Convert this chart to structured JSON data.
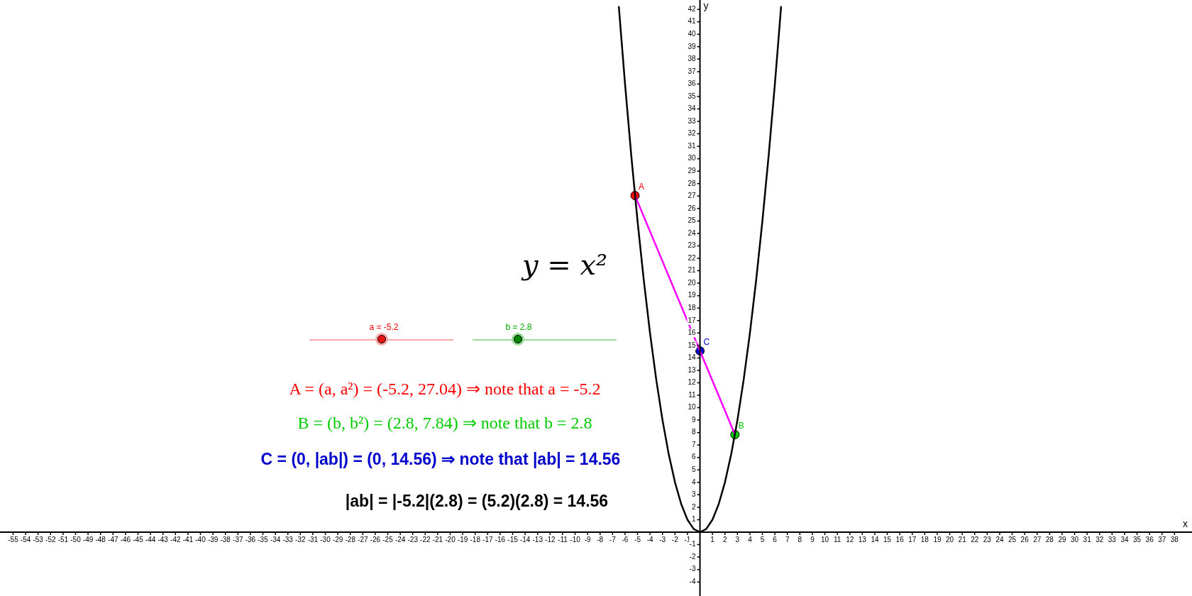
{
  "chart_data": {
    "type": "line",
    "xlabel": "x",
    "ylabel": "y",
    "xlim": [
      -56.05,
      39.4
    ],
    "ylim": [
      -5.13,
      42.75
    ],
    "xticks": [
      -55,
      -54,
      -53,
      -52,
      -51,
      -50,
      -49,
      -48,
      -47,
      -46,
      -45,
      -44,
      -43,
      -42,
      -41,
      -40,
      -39,
      -38,
      -37,
      -36,
      -35,
      -34,
      -33,
      -32,
      -31,
      -30,
      -29,
      -28,
      -27,
      -26,
      -25,
      -24,
      -23,
      -22,
      -21,
      -20,
      -19,
      -18,
      -17,
      -16,
      -15,
      -14,
      -13,
      -12,
      -11,
      -10,
      -9,
      -8,
      -7,
      -6,
      -5,
      -4,
      -3,
      -2,
      -1,
      1,
      2,
      3,
      4,
      5,
      6,
      7,
      8,
      9,
      10,
      11,
      12,
      13,
      14,
      15,
      16,
      17,
      18,
      19,
      20,
      21,
      22,
      23,
      24,
      25,
      26,
      27,
      28,
      29,
      30,
      31,
      32,
      33,
      34,
      35,
      36,
      37,
      38
    ],
    "yticks": [
      -4,
      -3,
      -2,
      -1,
      1,
      2,
      3,
      4,
      5,
      6,
      7,
      8,
      9,
      10,
      11,
      12,
      13,
      14,
      15,
      16,
      17,
      18,
      19,
      20,
      21,
      22,
      23,
      24,
      25,
      26,
      27,
      28,
      29,
      30,
      31,
      32,
      33,
      34,
      35,
      36,
      37,
      38,
      39,
      40,
      41,
      42
    ],
    "legend": false,
    "series": [
      {
        "type": "line",
        "color": "#000000",
        "x": [
          -6.5,
          -6,
          -5.5,
          -5,
          -4.5,
          -4,
          -3.5,
          -3,
          -2.5,
          -2,
          -1.5,
          -1,
          -0.5,
          0,
          0.5,
          1,
          1.5,
          2,
          2.5,
          3,
          3.5,
          4,
          4.5,
          5,
          5.5,
          6,
          6.5
        ],
        "values": [
          42.25,
          36,
          30.25,
          25,
          20.25,
          16,
          12.25,
          9,
          6.25,
          4,
          2.25,
          1,
          0.25,
          0,
          0.25,
          1,
          2.25,
          4,
          6.25,
          9,
          12.25,
          16,
          20.25,
          25,
          30.25,
          36,
          42.25
        ]
      },
      {
        "type": "line",
        "color": "#ff00ff",
        "x": [
          -5.2,
          2.8
        ],
        "values": [
          27.04,
          7.84
        ]
      },
      {
        "type": "scatter",
        "name": "A",
        "color": "#ff0000",
        "marker": "circle",
        "x": [
          -5.2
        ],
        "values": [
          27.04
        ]
      },
      {
        "type": "scatter",
        "name": "B",
        "color": "#00cc00",
        "marker": "circle",
        "x": [
          2.8
        ],
        "values": [
          7.84
        ]
      },
      {
        "type": "scatter",
        "name": "C",
        "color": "#0000cc",
        "marker": "circle",
        "x": [
          0
        ],
        "values": [
          14.56
        ]
      }
    ],
    "annotations": [
      "y = x²",
      "a = -5.2",
      "b = 2.8",
      "A = (a, a²) = (-5.2, 27.04) ⇒ note that  a = -5.2",
      "B = (b, b²) =  (2.8, 7.84) ⇒ note that  b = 2.8",
      "C = (0, |ab|) = (0, 14.56) ⇒ note that |ab| = 14.56",
      "|ab| = |-5.2|(2.8) = (5.2)(2.8) = 14.56"
    ]
  }
}
